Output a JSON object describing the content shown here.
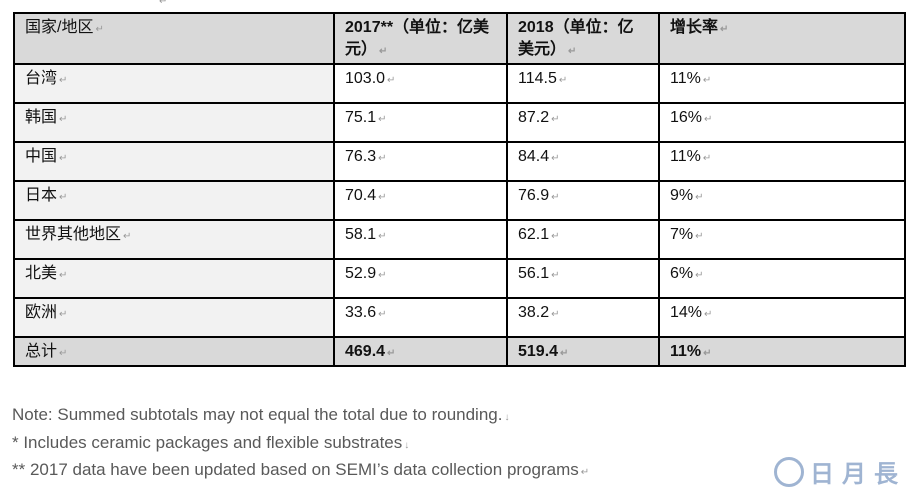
{
  "table": {
    "headers": [
      "国家/地区",
      "2017**（单位：亿美元）",
      "2018（单位：亿美元）",
      "增长率"
    ],
    "rows": [
      [
        "台湾",
        "103.0",
        "114.5",
        "11%"
      ],
      [
        "韩国",
        "75.1",
        "87.2",
        "16%"
      ],
      [
        "中国",
        "76.3",
        "84.4",
        "11%"
      ],
      [
        "日本",
        "70.4",
        "76.9",
        "9%"
      ],
      [
        "世界其他地区",
        "58.1",
        "62.1",
        "7%"
      ],
      [
        "北美",
        "52.9",
        "56.1",
        "6%"
      ],
      [
        "欧洲",
        "33.6",
        "38.2",
        "14%"
      ]
    ],
    "total": [
      "总计",
      "469.4",
      "519.4",
      "11%"
    ]
  },
  "notes": [
    "Note: Summed subtotals may not equal the total due to rounding.",
    "* Includes ceramic packages and flexible substrates",
    "** 2017 data have been updated based on SEMI’s data collection programs"
  ],
  "watermark": {
    "text": "日月長",
    "color": "#9fb4d2"
  }
}
